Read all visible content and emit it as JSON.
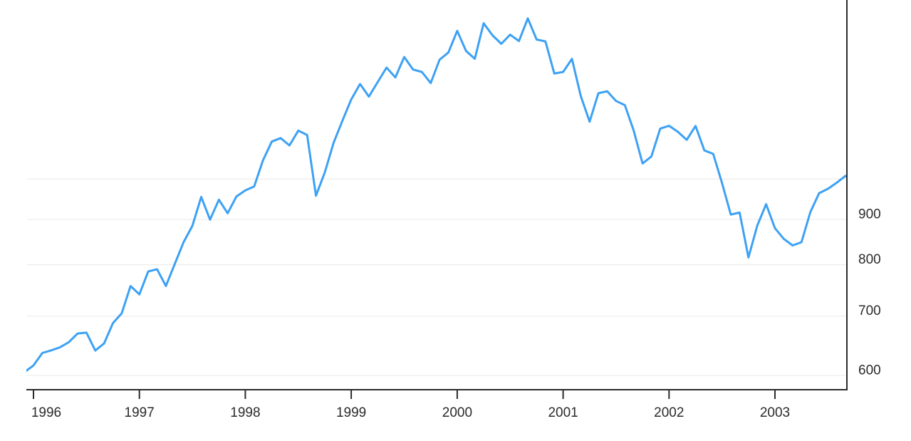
{
  "page": {
    "background": "#ffffff",
    "title": ""
  },
  "colors": {
    "line": "#3da1f4",
    "grid": "#e8e8e8",
    "axis": "#2b2b2b",
    "tick_label": "#2b2b2b",
    "background": "#ffffff"
  },
  "chart_data": {
    "type": "line",
    "title": "",
    "subtitle": "",
    "legend": [],
    "legend_position": "none",
    "grid": true,
    "y_scale": "log",
    "y_axis_side": "right",
    "y_tick_labels": [
      "600",
      "700",
      "800",
      "900"
    ],
    "y_tick_values": [
      600,
      700,
      800,
      900
    ],
    "y_gridline_values": [
      600,
      700,
      800,
      900,
      1000
    ],
    "ylim": [
      585,
      1560
    ],
    "x_tick_labels": [
      "1996",
      "1997",
      "1998",
      "1999",
      "2000",
      "2001",
      "2002",
      "2003"
    ],
    "x_tick_years": [
      1996,
      1997,
      1998,
      1999,
      2000,
      2001,
      2002,
      2003
    ],
    "xlim": [
      "1995-11",
      "2003-09"
    ],
    "x": [
      "1995-11",
      "1995-12",
      "1996-01",
      "1996-02",
      "1996-03",
      "1996-04",
      "1996-05",
      "1996-06",
      "1996-07",
      "1996-08",
      "1996-09",
      "1996-10",
      "1996-11",
      "1996-12",
      "1997-01",
      "1997-02",
      "1997-03",
      "1997-04",
      "1997-05",
      "1997-06",
      "1997-07",
      "1997-08",
      "1997-09",
      "1997-10",
      "1997-11",
      "1997-12",
      "1998-01",
      "1998-02",
      "1998-03",
      "1998-04",
      "1998-05",
      "1998-06",
      "1998-07",
      "1998-08",
      "1998-09",
      "1998-10",
      "1998-11",
      "1998-12",
      "1999-01",
      "1999-02",
      "1999-03",
      "1999-04",
      "1999-05",
      "1999-06",
      "1999-07",
      "1999-08",
      "1999-09",
      "1999-10",
      "1999-11",
      "1999-12",
      "2000-01",
      "2000-02",
      "2000-03",
      "2000-04",
      "2000-05",
      "2000-06",
      "2000-07",
      "2000-08",
      "2000-09",
      "2000-10",
      "2000-11",
      "2000-12",
      "2001-01",
      "2001-02",
      "2001-03",
      "2001-04",
      "2001-05",
      "2001-06",
      "2001-07",
      "2001-08",
      "2001-09",
      "2001-10",
      "2001-11",
      "2001-12",
      "2002-01",
      "2002-02",
      "2002-03",
      "2002-04",
      "2002-05",
      "2002-06",
      "2002-07",
      "2002-08",
      "2002-09",
      "2002-10",
      "2002-11",
      "2002-12",
      "2003-01",
      "2003-02",
      "2003-03",
      "2003-04",
      "2003-05",
      "2003-06",
      "2003-07",
      "2003-08",
      "2003-09"
    ],
    "values": [
      605.4,
      615.9,
      636.0,
      640.4,
      645.5,
      654.2,
      669.1,
      670.6,
      640.0,
      652.0,
      687.3,
      705.3,
      757.0,
      740.7,
      786.2,
      790.8,
      757.1,
      801.3,
      848.3,
      885.1,
      954.3,
      899.5,
      947.3,
      914.6,
      955.4,
      970.4,
      980.3,
      1049.3,
      1101.8,
      1111.8,
      1090.8,
      1133.8,
      1120.7,
      957.3,
      1017.0,
      1098.7,
      1163.6,
      1229.2,
      1279.6,
      1238.3,
      1286.4,
      1335.2,
      1301.8,
      1372.7,
      1328.7,
      1320.4,
      1282.7,
      1362.9,
      1388.9,
      1469.3,
      1394.5,
      1366.4,
      1498.6,
      1452.4,
      1420.6,
      1454.6,
      1430.8,
      1517.7,
      1436.5,
      1429.4,
      1315.0,
      1320.3,
      1366.0,
      1239.9,
      1160.3,
      1249.5,
      1255.8,
      1224.4,
      1211.2,
      1133.6,
      1040.9,
      1059.8,
      1139.5,
      1148.1,
      1130.2,
      1106.7,
      1147.4,
      1076.9,
      1067.1,
      989.8,
      911.6,
      916.1,
      815.3,
      885.8,
      936.3,
      879.8,
      855.7,
      841.2,
      848.2,
      916.9,
      963.6,
      974.5,
      990.3,
      1008.0,
      996.0
    ]
  }
}
